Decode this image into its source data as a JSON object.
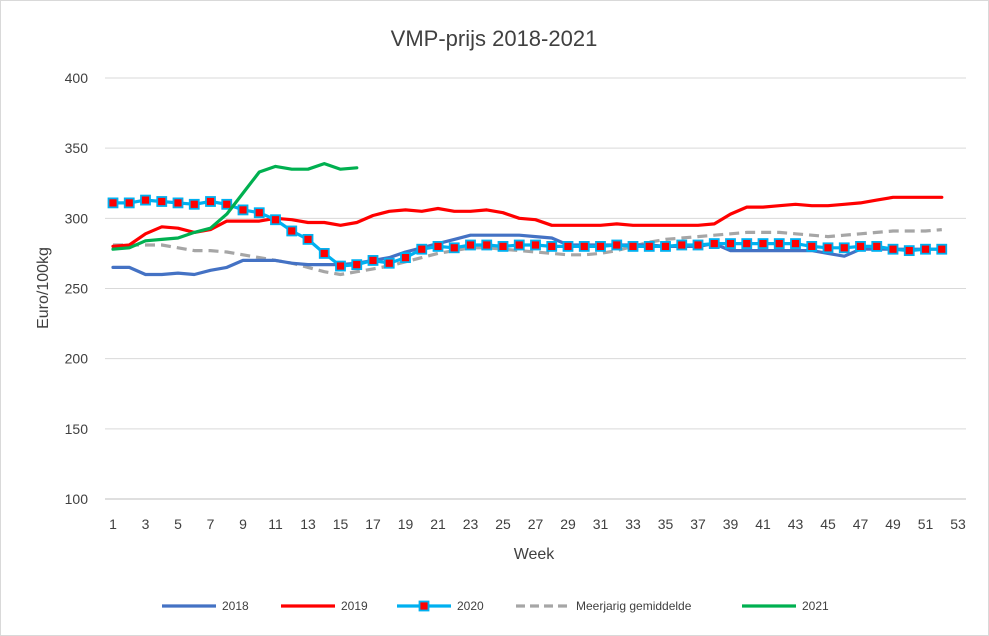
{
  "chart_data": {
    "type": "line",
    "title": "VMP-prijs 2018-2021",
    "xlabel": "Week",
    "ylabel": "Euro/100kg",
    "ylim": [
      100,
      400
    ],
    "xlim": [
      1,
      53
    ],
    "yticks": [
      "100",
      "150",
      "200",
      "250",
      "300",
      "350",
      "400"
    ],
    "xticks": [
      "1",
      "3",
      "5",
      "7",
      "9",
      "11",
      "13",
      "15",
      "17",
      "19",
      "21",
      "23",
      "25",
      "27",
      "29",
      "31",
      "33",
      "35",
      "37",
      "39",
      "41",
      "43",
      "45",
      "47",
      "49",
      "51",
      "53"
    ],
    "grid": true,
    "legend_position": "bottom",
    "series": [
      {
        "name": "2018",
        "color": "#4472c4",
        "style": "solid",
        "x": [
          1,
          2,
          3,
          4,
          5,
          6,
          7,
          8,
          9,
          10,
          11,
          12,
          13,
          14,
          15,
          16,
          17,
          18,
          19,
          20,
          21,
          22,
          23,
          24,
          25,
          26,
          27,
          28,
          29,
          30,
          31,
          32,
          33,
          34,
          35,
          36,
          37,
          38,
          39,
          40,
          41,
          42,
          43,
          44,
          45,
          46,
          47,
          48,
          49,
          50,
          51,
          52
        ],
        "values": [
          265,
          265,
          260,
          260,
          261,
          260,
          263,
          265,
          270,
          270,
          270,
          268,
          267,
          267,
          267,
          268,
          270,
          272,
          276,
          279,
          282,
          285,
          288,
          288,
          288,
          288,
          287,
          286,
          281,
          281,
          281,
          281,
          281,
          281,
          280,
          280,
          280,
          282,
          277,
          277,
          277,
          277,
          277,
          277,
          275,
          273,
          278,
          278,
          278,
          278,
          278,
          278
        ]
      },
      {
        "name": "2019",
        "color": "#ff0000",
        "style": "solid",
        "x": [
          1,
          2,
          3,
          4,
          5,
          6,
          7,
          8,
          9,
          10,
          11,
          12,
          13,
          14,
          15,
          16,
          17,
          18,
          19,
          20,
          21,
          22,
          23,
          24,
          25,
          26,
          27,
          28,
          29,
          30,
          31,
          32,
          33,
          34,
          35,
          36,
          37,
          38,
          39,
          40,
          41,
          42,
          43,
          44,
          45,
          46,
          47,
          48,
          49,
          50,
          51,
          52
        ],
        "values": [
          280,
          281,
          289,
          294,
          293,
          290,
          292,
          298,
          298,
          298,
          300,
          299,
          297,
          297,
          295,
          297,
          302,
          305,
          306,
          305,
          307,
          305,
          305,
          306,
          304,
          300,
          299,
          295,
          295,
          295,
          295,
          296,
          295,
          295,
          295,
          295,
          295,
          296,
          303,
          308,
          308,
          309,
          310,
          309,
          309,
          310,
          311,
          313,
          315,
          315,
          315,
          315
        ]
      },
      {
        "name": "2020",
        "color": "#00b0f0",
        "marker_color": "#ff0000",
        "style": "solid-markers",
        "x": [
          1,
          2,
          3,
          4,
          5,
          6,
          7,
          8,
          9,
          10,
          11,
          12,
          13,
          14,
          15,
          16,
          17,
          18,
          19,
          20,
          21,
          22,
          23,
          24,
          25,
          26,
          27,
          28,
          29,
          30,
          31,
          32,
          33,
          34,
          35,
          36,
          37,
          38,
          39,
          40,
          41,
          42,
          43,
          44,
          45,
          46,
          47,
          48,
          49,
          50,
          51,
          52
        ],
        "values": [
          311,
          311,
          313,
          312,
          311,
          310,
          312,
          310,
          306,
          304,
          299,
          291,
          285,
          275,
          266,
          267,
          270,
          268,
          272,
          278,
          280,
          279,
          281,
          281,
          280,
          281,
          281,
          280,
          280,
          280,
          280,
          281,
          280,
          280,
          280,
          281,
          281,
          282,
          282,
          282,
          282,
          282,
          282,
          280,
          279,
          279,
          280,
          280,
          278,
          277,
          278,
          278
        ]
      },
      {
        "name": "Meerjarig gemiddelde",
        "color": "#a6a6a6",
        "style": "dashed",
        "x": [
          1,
          2,
          3,
          4,
          5,
          6,
          7,
          8,
          9,
          10,
          11,
          12,
          13,
          14,
          15,
          16,
          17,
          18,
          19,
          20,
          21,
          22,
          23,
          24,
          25,
          26,
          27,
          28,
          29,
          30,
          31,
          32,
          33,
          34,
          35,
          36,
          37,
          38,
          39,
          40,
          41,
          42,
          43,
          44,
          45,
          46,
          47,
          48,
          49,
          50,
          51,
          52
        ],
        "values": [
          281,
          281,
          281,
          281,
          279,
          277,
          277,
          276,
          274,
          272,
          270,
          268,
          265,
          262,
          260,
          262,
          264,
          266,
          269,
          272,
          275,
          277,
          279,
          279,
          278,
          277,
          276,
          275,
          274,
          274,
          275,
          277,
          280,
          283,
          285,
          286,
          287,
          288,
          289,
          290,
          290,
          290,
          289,
          288,
          287,
          288,
          289,
          290,
          291,
          291,
          291,
          292
        ]
      },
      {
        "name": "2021",
        "color": "#00b050",
        "style": "solid",
        "x": [
          1,
          2,
          3,
          4,
          5,
          6,
          7,
          8,
          9,
          10,
          11,
          12,
          13,
          14,
          15,
          16
        ],
        "values": [
          278,
          279,
          284,
          285,
          286,
          290,
          293,
          303,
          318,
          333,
          337,
          335,
          335,
          339,
          335,
          336
        ]
      }
    ]
  }
}
